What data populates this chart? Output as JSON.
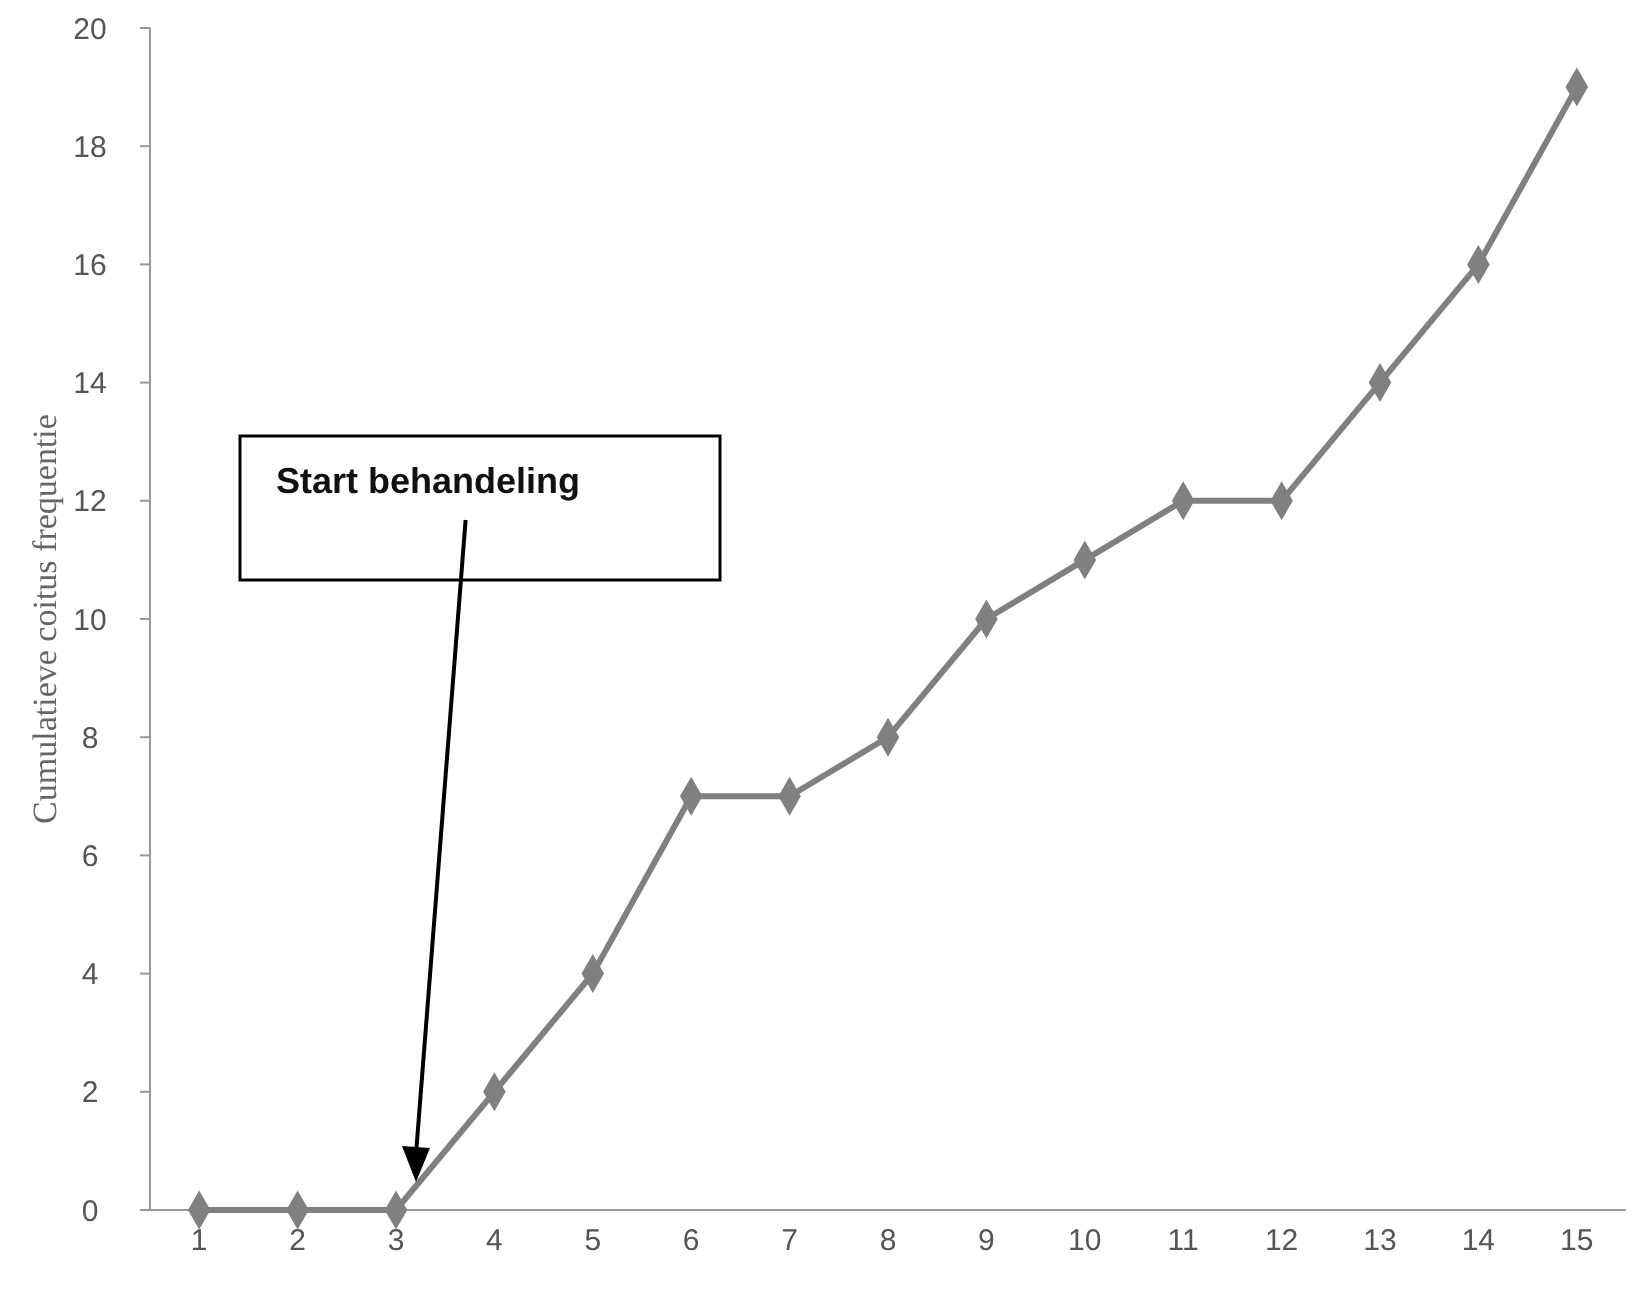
{
  "chart_data": {
    "type": "line",
    "ylabel": "Cumulatieve coitus frequentie",
    "categories": [
      "1",
      "2",
      "3",
      "4",
      "5",
      "6",
      "7",
      "8",
      "9",
      "10",
      "11",
      "12",
      "13",
      "14",
      "15"
    ],
    "values": [
      0,
      0,
      0,
      2,
      4,
      7,
      7,
      8,
      10,
      11,
      12,
      12,
      14,
      16,
      19
    ],
    "color": "#808080",
    "marker": "diamond",
    "grid": false,
    "ylim": [
      0,
      20
    ],
    "yticks": [
      0,
      2,
      4,
      6,
      8,
      10,
      12,
      14,
      16,
      18,
      20
    ],
    "annotations": [
      "Start behandeling"
    ]
  }
}
